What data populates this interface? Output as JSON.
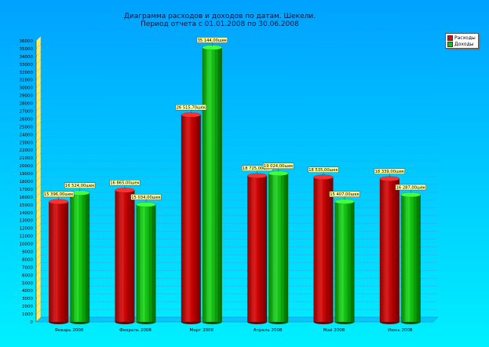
{
  "title_line1": "Диаграмма расходов и доходов по датам. Шекели.",
  "title_line2": "Период отчета с 01.01.2008 по 30.06.2008",
  "legend": [
    {
      "label": "Расходы",
      "color": "#d01010"
    },
    {
      "label": "Доходы",
      "color": "#12c012"
    }
  ],
  "colors": {
    "background_top": "#00a2ff",
    "background_bottom": "#00f0ff",
    "expense": "#d01010",
    "income": "#12c012",
    "data_label_bg": "#ffff99"
  },
  "chart_data": {
    "type": "bar",
    "title": "Диаграмма расходов и доходов по датам. Шекели. Период отчета с 01.01.2008 по 30.06.2008",
    "categories": [
      "Январь 2008",
      "Февраль 2008",
      "Март 2008",
      "Апрель 2008",
      "Май 2008",
      "Июнь 2008"
    ],
    "series": [
      {
        "name": "Расходы",
        "values": [
          15396.0,
          16865.0,
          26515.7,
          18725.0,
          18535.0,
          18339.0
        ],
        "labels": [
          "15 396,00шек",
          "16 865,00шек",
          "26 515,70шек",
          "18 725,00шек",
          "18 535,00шек",
          "18 339,00шек"
        ]
      },
      {
        "name": "Доходы",
        "values": [
          16524.0,
          15034.0,
          35144.0,
          19024.0,
          15407.0,
          16287.0
        ],
        "labels": [
          "16 524,00шек",
          "15 034,00шек",
          "35 144,00шек",
          "19 024,00шек",
          "15 407,00шек",
          "16 287,00шек"
        ]
      }
    ],
    "ylim": [
      0,
      36000
    ],
    "ytick_step": 1000,
    "grid": true,
    "legend_position": "top-right"
  }
}
